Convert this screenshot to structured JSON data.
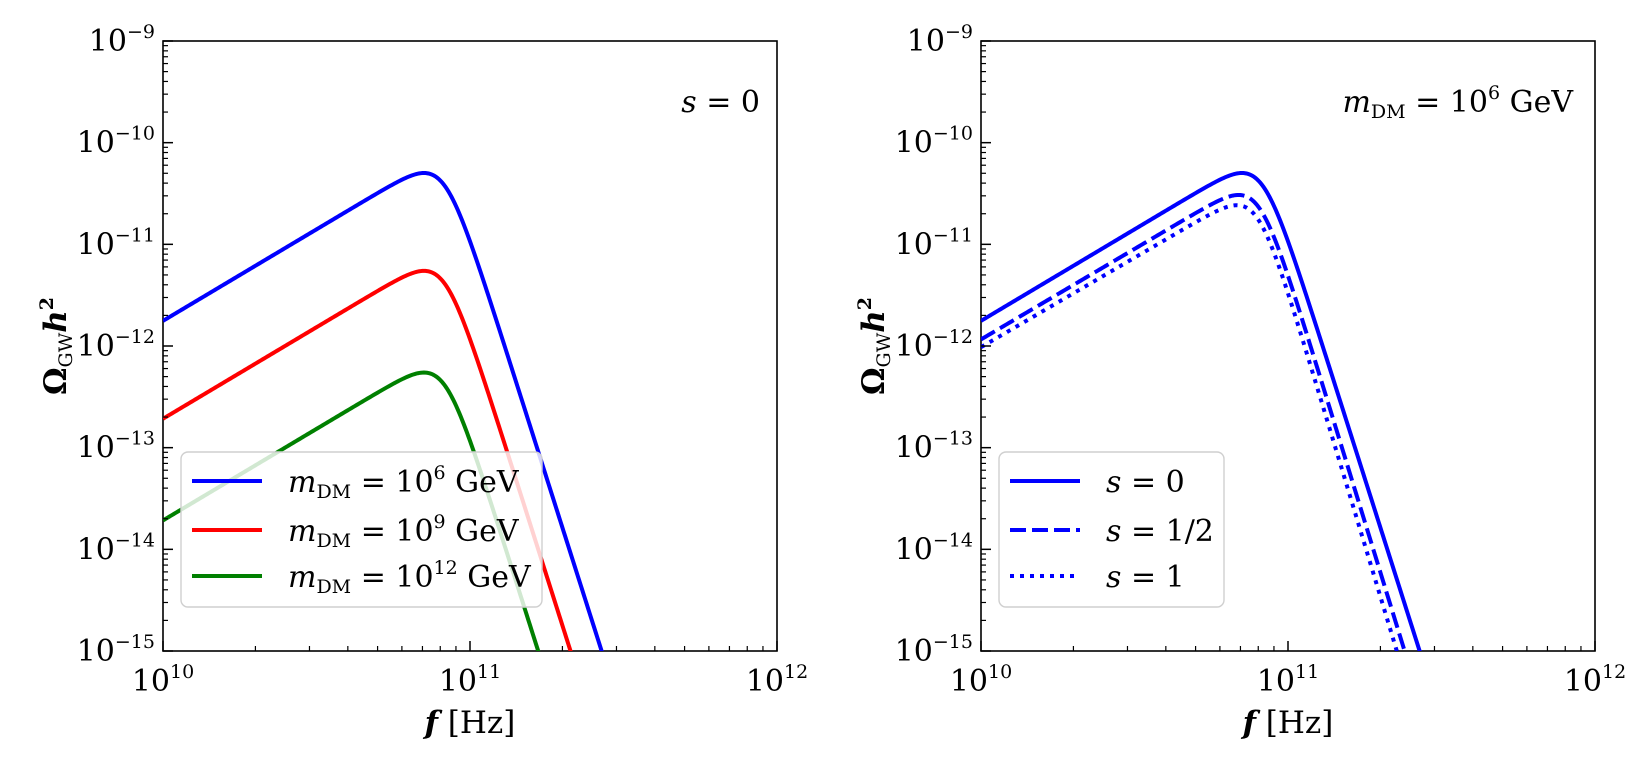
{
  "chart_data": [
    {
      "type": "line",
      "xscale": "log",
      "yscale": "log",
      "xlim": [
        10000000000.0,
        1000000000000.0
      ],
      "ylim": [
        1e-15,
        1e-09
      ],
      "xlabel": "f [Hz]",
      "ylabel": "Ω_GW h²",
      "xticks": [
        {
          "base": "10",
          "exp": "10"
        },
        {
          "base": "10",
          "exp": "11"
        },
        {
          "base": "10",
          "exp": "12"
        }
      ],
      "yticks": [
        {
          "base": "10",
          "exp": "−9"
        },
        {
          "base": "10",
          "exp": "−10"
        },
        {
          "base": "10",
          "exp": "−11"
        },
        {
          "base": "10",
          "exp": "−12"
        },
        {
          "base": "10",
          "exp": "−13"
        },
        {
          "base": "10",
          "exp": "−14"
        },
        {
          "base": "10",
          "exp": "−15"
        }
      ],
      "annotation": "s = 0",
      "legend_position": "lower-left",
      "series": [
        {
          "name": "m_DM = 10^6 GeV",
          "color": "#0000ff",
          "style": "solid",
          "peak_f": 82000000000.0,
          "peak": 7.8e-11,
          "low_slope": 1.8,
          "high_slope": 9.5,
          "sharpness": 1.0
        },
        {
          "name": "m_DM = 10^9 GeV",
          "color": "#ff0000",
          "style": "solid",
          "peak_f": 82000000000.0,
          "peak": 8.5e-12,
          "low_slope": 1.8,
          "high_slope": 9.5,
          "sharpness": 1.0
        },
        {
          "name": "m_DM = 10^12 GeV",
          "color": "#008000",
          "style": "solid",
          "peak_f": 82000000000.0,
          "peak": 8.5e-13,
          "low_slope": 1.8,
          "high_slope": 9.5,
          "sharpness": 1.0
        }
      ],
      "legend": [
        {
          "prefix": "m",
          "sub": "DM",
          "mid": " = 10",
          "exp": "6",
          "suffix": " GeV"
        },
        {
          "prefix": "m",
          "sub": "DM",
          "mid": " = 10",
          "exp": "9",
          "suffix": " GeV"
        },
        {
          "prefix": "m",
          "sub": "DM",
          "mid": " = 10",
          "exp": "12",
          "suffix": " GeV"
        }
      ]
    },
    {
      "type": "line",
      "xscale": "log",
      "yscale": "log",
      "xlim": [
        10000000000.0,
        1000000000000.0
      ],
      "ylim": [
        1e-15,
        1e-09
      ],
      "xlabel": "f [Hz]",
      "ylabel": "Ω_GW h²",
      "xticks": [
        {
          "base": "10",
          "exp": "10"
        },
        {
          "base": "10",
          "exp": "11"
        },
        {
          "base": "10",
          "exp": "12"
        }
      ],
      "yticks": [
        {
          "base": "10",
          "exp": "−9"
        },
        {
          "base": "10",
          "exp": "−10"
        },
        {
          "base": "10",
          "exp": "−11"
        },
        {
          "base": "10",
          "exp": "−12"
        },
        {
          "base": "10",
          "exp": "−13"
        },
        {
          "base": "10",
          "exp": "−14"
        },
        {
          "base": "10",
          "exp": "−15"
        }
      ],
      "annotation": "m_DM = 10^6 GeV",
      "legend_position": "lower-left",
      "series": [
        {
          "name": "s = 0",
          "color": "#0000ff",
          "style": "solid",
          "peak_f": 82000000000.0,
          "peak": 7.8e-11,
          "low_slope": 1.8,
          "high_slope": 9.5,
          "sharpness": 1.0
        },
        {
          "name": "s = 1/2",
          "color": "#0000ff",
          "style": "dashed",
          "peak_f": 80000000000.0,
          "peak": 4.7e-11,
          "low_slope": 1.78,
          "high_slope": 9.8,
          "sharpness": 1.0
        },
        {
          "name": "s = 1",
          "color": "#0000ff",
          "style": "dotted",
          "peak_f": 79000000000.0,
          "peak": 3.7e-11,
          "low_slope": 1.76,
          "high_slope": 10.0,
          "sharpness": 1.0
        }
      ],
      "legend": [
        {
          "prefix": "s",
          "sub": "",
          "mid": " = 0",
          "exp": "",
          "suffix": ""
        },
        {
          "prefix": "s",
          "sub": "",
          "mid": " = 1/2",
          "exp": "",
          "suffix": ""
        },
        {
          "prefix": "s",
          "sub": "",
          "mid": " = 1",
          "exp": "",
          "suffix": ""
        }
      ]
    }
  ],
  "labels": {
    "ylabel_main": "Ω",
    "ylabel_sub": "GW",
    "ylabel_h": "h",
    "ylabel_exp": "2",
    "xlabel_f": "f",
    "xlabel_unit": " [Hz]",
    "panel1_annot_s": "s",
    "panel1_annot_rest": " = 0",
    "panel2_annot_m": "m",
    "panel2_annot_sub": "DM",
    "panel2_annot_mid": " = 10",
    "panel2_annot_exp": "6",
    "panel2_annot_unit": " GeV"
  }
}
